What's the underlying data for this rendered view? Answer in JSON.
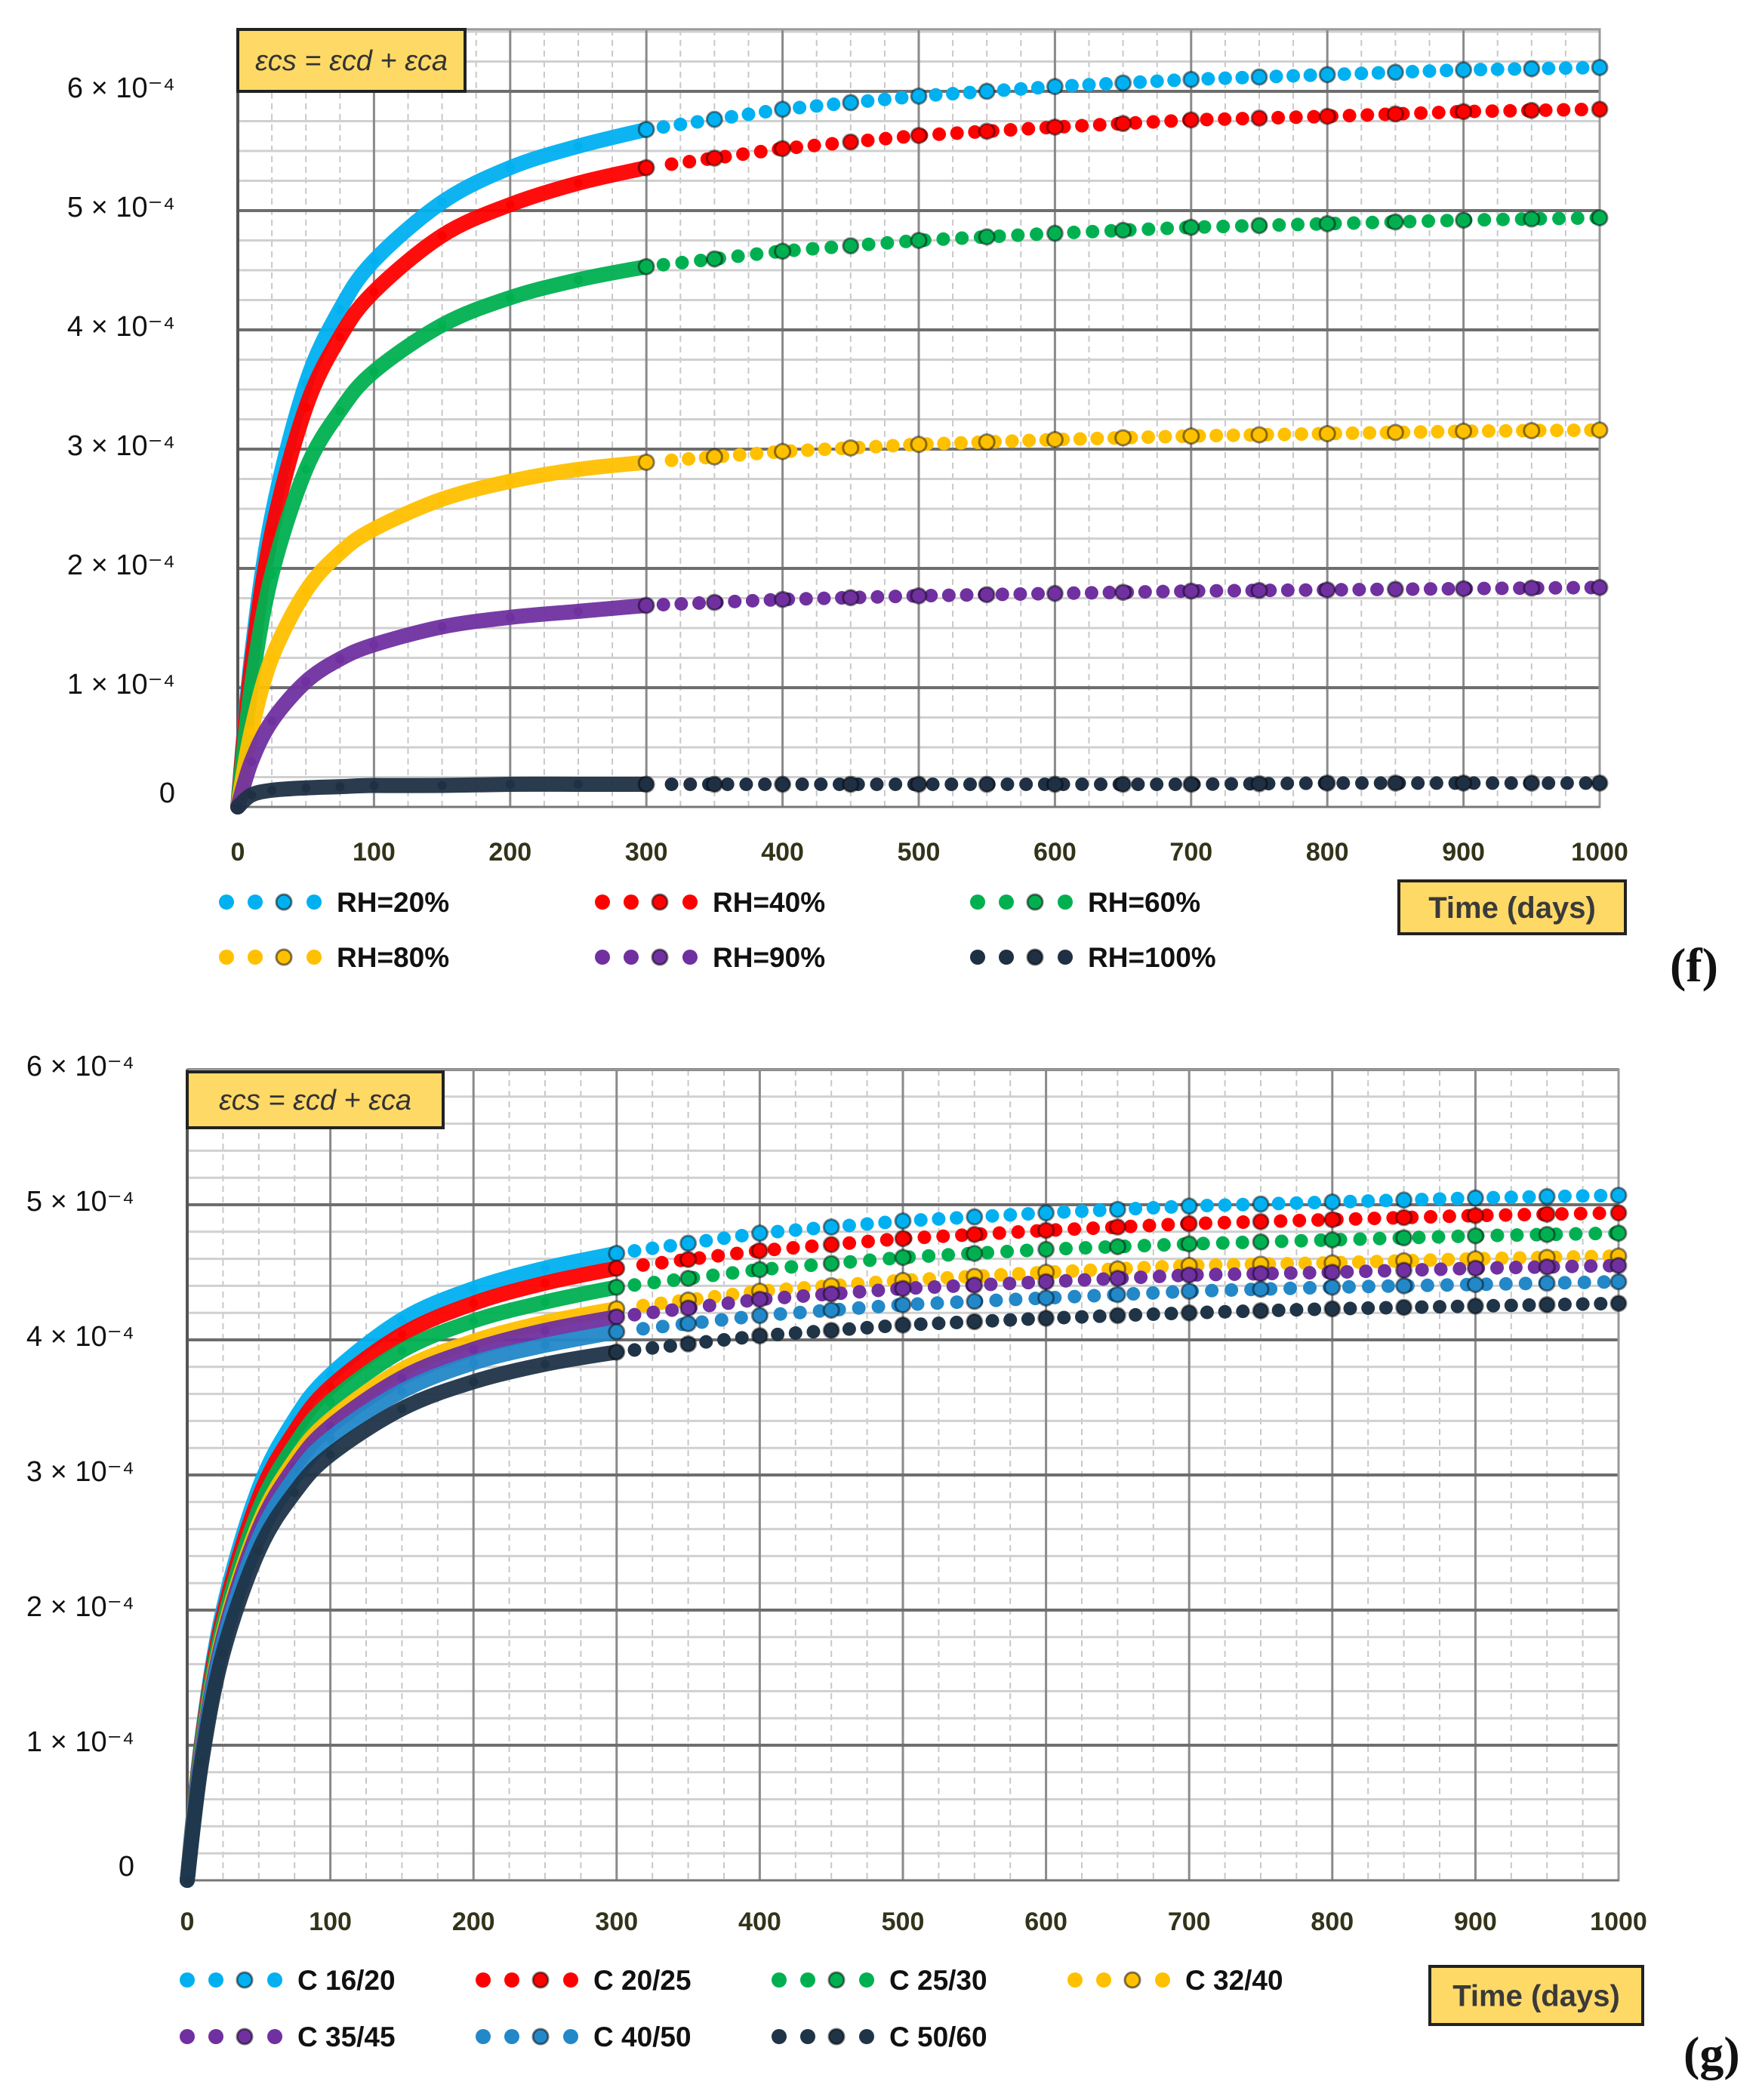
{
  "chart_data": [
    {
      "type": "scatter",
      "panel_label": "(f)",
      "annotation": "εcs = εcd + εca",
      "xlabel": "Time (days)",
      "ylabel": "",
      "xlim": [
        0,
        1000
      ],
      "ylim": [
        0,
        0.00065
      ],
      "y_unit_scale": 0.0001,
      "grid": true,
      "x_ticks": [
        "0",
        "100",
        "200",
        "300",
        "400",
        "500",
        "600",
        "700",
        "800",
        "900",
        "1000"
      ],
      "y_ticks": [
        "0",
        "1 × 10⁻⁴",
        "2 × 10⁻⁴",
        "3 × 10⁻⁴",
        "4 × 10⁻⁴",
        "5 × 10⁻⁴",
        "6 × 10⁻⁴"
      ],
      "legend_placement": "bottom",
      "x": [
        0,
        10,
        25,
        50,
        75,
        100,
        150,
        200,
        250,
        300,
        400,
        500,
        600,
        700,
        800,
        900,
        1000
      ],
      "series": [
        {
          "name": "RH=20%",
          "color": "#00b0f0",
          "values": [
            0,
            1.26,
            2.44,
            3.55,
            4.17,
            4.58,
            5.07,
            5.36,
            5.54,
            5.68,
            5.85,
            5.96,
            6.04,
            6.1,
            6.14,
            6.18,
            6.2
          ]
        },
        {
          "name": "RH=40%",
          "color": "#ff0000",
          "values": [
            0,
            1.19,
            2.3,
            3.35,
            3.94,
            4.32,
            4.79,
            5.05,
            5.23,
            5.36,
            5.52,
            5.63,
            5.7,
            5.76,
            5.79,
            5.83,
            5.85
          ]
        },
        {
          "name": "RH=60%",
          "color": "#00b050",
          "values": [
            0,
            1.01,
            1.95,
            2.83,
            3.32,
            3.65,
            4.04,
            4.27,
            4.42,
            4.53,
            4.66,
            4.75,
            4.81,
            4.86,
            4.89,
            4.92,
            4.94
          ]
        },
        {
          "name": "RH=80%",
          "color": "#ffc000",
          "values": [
            0,
            0.64,
            1.25,
            1.81,
            2.13,
            2.33,
            2.58,
            2.73,
            2.83,
            2.89,
            2.98,
            3.04,
            3.08,
            3.11,
            3.13,
            3.15,
            3.16
          ]
        },
        {
          "name": "RH=90%",
          "color": "#7030a0",
          "values": [
            0,
            0.38,
            0.72,
            1.05,
            1.24,
            1.36,
            1.51,
            1.59,
            1.64,
            1.69,
            1.74,
            1.77,
            1.79,
            1.81,
            1.82,
            1.83,
            1.84
          ]
        },
        {
          "name": "RH=100%",
          "color": "#1f3044",
          "values": [
            0,
            0.1,
            0.14,
            0.16,
            0.17,
            0.18,
            0.18,
            0.19,
            0.19,
            0.19,
            0.19,
            0.19,
            0.19,
            0.19,
            0.2,
            0.2,
            0.2
          ]
        }
      ]
    },
    {
      "type": "scatter",
      "panel_label": "(g)",
      "annotation": "εcs = εcd + εca",
      "xlabel": "Time (days)",
      "ylabel": "",
      "xlim": [
        0,
        1000
      ],
      "ylim": [
        0,
        0.0006
      ],
      "y_unit_scale": 0.0001,
      "grid": true,
      "x_ticks": [
        "0",
        "100",
        "200",
        "300",
        "400",
        "500",
        "600",
        "700",
        "800",
        "900",
        "1000"
      ],
      "y_ticks": [
        "0",
        "1 × 10⁻⁴",
        "2 × 10⁻⁴",
        "3 × 10⁻⁴",
        "4 × 10⁻⁴",
        "5 × 10⁻⁴",
        "6 × 10⁻⁴"
      ],
      "legend_placement": "bottom",
      "x": [
        0,
        10,
        25,
        50,
        75,
        100,
        150,
        200,
        250,
        300,
        400,
        500,
        600,
        700,
        800,
        900,
        1000
      ],
      "series": [
        {
          "name": "C 16/20",
          "color": "#00b0f0",
          "values": [
            0,
            1.03,
            2.0,
            2.9,
            3.41,
            3.74,
            4.15,
            4.38,
            4.53,
            4.64,
            4.79,
            4.88,
            4.94,
            4.99,
            5.02,
            5.05,
            5.07
          ]
        },
        {
          "name": "C 20/25",
          "color": "#ff0000",
          "values": [
            0,
            1.01,
            1.95,
            2.83,
            3.32,
            3.65,
            4.04,
            4.27,
            4.42,
            4.53,
            4.66,
            4.75,
            4.81,
            4.86,
            4.89,
            4.92,
            4.94
          ]
        },
        {
          "name": "C 25/30",
          "color": "#00b050",
          "values": [
            0,
            0.98,
            1.89,
            2.74,
            3.22,
            3.54,
            3.92,
            4.14,
            4.28,
            4.39,
            4.52,
            4.61,
            4.67,
            4.71,
            4.74,
            4.77,
            4.79
          ]
        },
        {
          "name": "C 32/40",
          "color": "#ffc000",
          "values": [
            0,
            0.94,
            1.82,
            2.64,
            3.11,
            3.41,
            3.78,
            3.99,
            4.13,
            4.23,
            4.36,
            4.44,
            4.5,
            4.55,
            4.57,
            4.6,
            4.62
          ]
        },
        {
          "name": "C 35/45",
          "color": "#7030a0",
          "values": [
            0,
            0.93,
            1.79,
            2.6,
            3.06,
            3.36,
            3.72,
            3.93,
            4.07,
            4.17,
            4.3,
            4.38,
            4.43,
            4.48,
            4.5,
            4.53,
            4.55
          ]
        },
        {
          "name": "C 40/50",
          "color": "#2288c8",
          "values": [
            0,
            0.9,
            1.75,
            2.53,
            2.98,
            3.27,
            3.62,
            3.83,
            3.96,
            4.06,
            4.18,
            4.26,
            4.31,
            4.36,
            4.39,
            4.41,
            4.43
          ]
        },
        {
          "name": "C 50/60",
          "color": "#203448",
          "values": [
            0,
            0.87,
            1.68,
            2.44,
            2.87,
            3.15,
            3.49,
            3.69,
            3.82,
            3.91,
            4.03,
            4.11,
            4.16,
            4.2,
            4.23,
            4.25,
            4.27
          ]
        }
      ]
    }
  ]
}
